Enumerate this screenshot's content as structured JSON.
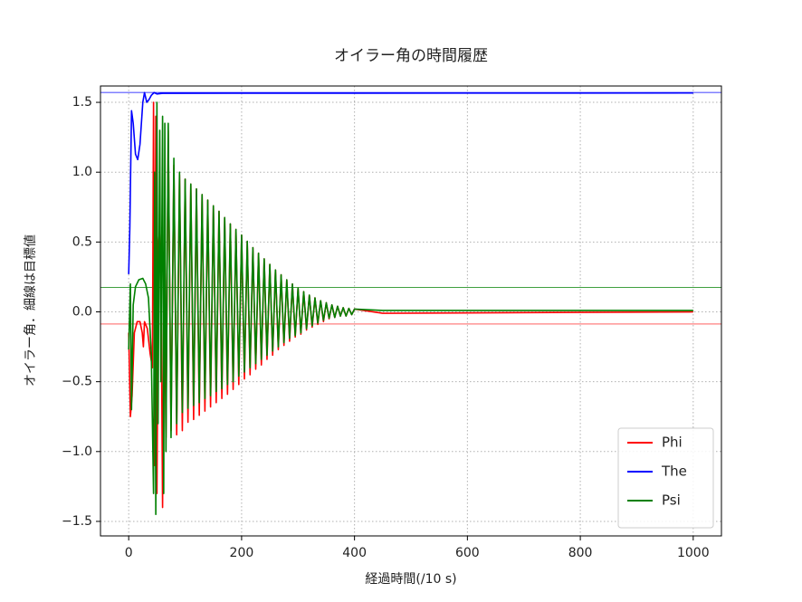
{
  "chart_data": {
    "type": "line",
    "title": "オイラー角の時間履歴",
    "x_label": "経過時間(/10 s)",
    "y_label": "オイラー角．細線は目標値",
    "xlim": [
      -50,
      1050
    ],
    "ylim": [
      -1.604,
      1.617
    ],
    "xticks": [
      0,
      200,
      400,
      600,
      800,
      1000
    ],
    "yticks": [
      {
        "value": -1.5,
        "label": "−1.5"
      },
      {
        "value": -1.0,
        "label": "−1.0"
      },
      {
        "value": -0.5,
        "label": "−0.5"
      },
      {
        "value": 0.0,
        "label": "0.0"
      },
      0.5,
      {
        "value": 1.0,
        "label": "1.0"
      },
      1.5
    ],
    "grid": true,
    "legend": "lower right",
    "series": [
      {
        "name": "Phi",
        "color": "#ff0000",
        "target": -0.087,
        "x": [
          0,
          3,
          6,
          10,
          15,
          20,
          24,
          26,
          28,
          33,
          38,
          42,
          44,
          46,
          48,
          50,
          53,
          55,
          57,
          60,
          63,
          66,
          70,
          75,
          80,
          85,
          90,
          95,
          100,
          105,
          110,
          115,
          120,
          125,
          130,
          135,
          140,
          145,
          150,
          155,
          160,
          165,
          170,
          175,
          180,
          185,
          190,
          195,
          200,
          205,
          210,
          215,
          220,
          225,
          230,
          235,
          240,
          245,
          250,
          255,
          260,
          265,
          270,
          275,
          280,
          285,
          290,
          295,
          300,
          305,
          310,
          315,
          320,
          325,
          330,
          335,
          340,
          345,
          350,
          355,
          360,
          365,
          370,
          375,
          380,
          385,
          390,
          395,
          400,
          450,
          1000
        ],
        "values": [
          -0.15,
          -0.75,
          -0.6,
          -0.15,
          -0.07,
          -0.07,
          -0.15,
          -0.25,
          -0.07,
          -0.12,
          -0.3,
          -0.4,
          1.5,
          -1.1,
          1.4,
          -1.3,
          0.5,
          0.6,
          0.4,
          -1.4,
          0.4,
          -0.9,
          1.3,
          -0.85,
          1.05,
          -0.88,
          0.98,
          -0.85,
          0.95,
          -0.79,
          0.915,
          -0.77,
          0.88,
          -0.74,
          0.84,
          -0.71,
          0.8,
          -0.68,
          0.76,
          -0.65,
          0.72,
          -0.62,
          0.675,
          -0.59,
          0.63,
          -0.555,
          0.59,
          -0.52,
          0.55,
          -0.48,
          0.505,
          -0.45,
          0.46,
          -0.41,
          0.42,
          -0.38,
          0.38,
          -0.34,
          0.34,
          -0.31,
          0.3,
          -0.27,
          0.265,
          -0.24,
          0.23,
          -0.21,
          0.2,
          -0.18,
          0.17,
          -0.16,
          0.145,
          -0.13,
          0.12,
          -0.11,
          0.1,
          -0.09,
          0.08,
          -0.07,
          0.065,
          -0.05,
          0.05,
          -0.04,
          0.04,
          -0.03,
          0.03,
          -0.03,
          0.025,
          -0.02,
          0.02,
          -0.01,
          0.0
        ]
      },
      {
        "name": "The",
        "color": "#0000ff",
        "target": 1.571,
        "x": [
          0,
          2,
          5,
          8,
          12,
          16,
          20,
          25,
          28,
          32,
          36,
          40,
          45,
          50,
          60,
          1000
        ],
        "values": [
          0.27,
          0.6,
          1.44,
          1.35,
          1.13,
          1.09,
          1.2,
          1.5,
          1.57,
          1.5,
          1.52,
          1.55,
          1.57,
          1.56,
          1.565,
          1.567
        ]
      },
      {
        "name": "Psi",
        "color": "#008000",
        "target": 0.175,
        "x": [
          0,
          3,
          5,
          8,
          12,
          18,
          25,
          30,
          35,
          40,
          44,
          46,
          48,
          50,
          52,
          55,
          57,
          60,
          62,
          64,
          66,
          70,
          75,
          80,
          85,
          90,
          95,
          100,
          105,
          110,
          115,
          120,
          125,
          130,
          135,
          140,
          145,
          150,
          155,
          160,
          165,
          170,
          175,
          180,
          185,
          190,
          195,
          200,
          205,
          210,
          215,
          220,
          225,
          230,
          235,
          240,
          245,
          250,
          255,
          260,
          265,
          270,
          275,
          280,
          285,
          290,
          295,
          300,
          305,
          310,
          315,
          320,
          325,
          330,
          335,
          340,
          345,
          350,
          355,
          360,
          365,
          370,
          375,
          380,
          385,
          390,
          395,
          400,
          450,
          500,
          1000
        ],
        "values": [
          -0.27,
          0.2,
          -0.7,
          0.05,
          0.18,
          0.23,
          0.24,
          0.2,
          0.1,
          -0.3,
          -1.3,
          1.0,
          -1.45,
          1.5,
          -0.8,
          1.3,
          -0.5,
          1.4,
          -1.3,
          1.35,
          -1.0,
          1.35,
          -0.9,
          1.1,
          -0.8,
          1.0,
          -0.72,
          0.95,
          -0.69,
          0.915,
          -0.67,
          0.88,
          -0.65,
          0.84,
          -0.62,
          0.8,
          -0.6,
          0.76,
          -0.57,
          0.72,
          -0.55,
          0.675,
          -0.52,
          0.63,
          -0.5,
          0.59,
          -0.46,
          0.55,
          -0.43,
          0.505,
          -0.4,
          0.46,
          -0.37,
          0.42,
          -0.34,
          0.38,
          -0.31,
          0.34,
          -0.28,
          0.3,
          -0.25,
          0.265,
          -0.22,
          0.23,
          -0.19,
          0.2,
          -0.17,
          0.17,
          -0.15,
          0.145,
          -0.12,
          0.12,
          -0.1,
          0.1,
          -0.08,
          0.08,
          -0.06,
          0.065,
          -0.045,
          0.05,
          -0.04,
          0.04,
          -0.03,
          0.03,
          -0.03,
          0.025,
          -0.02,
          0.02,
          0.01,
          0.01,
          0.01
        ]
      }
    ]
  }
}
